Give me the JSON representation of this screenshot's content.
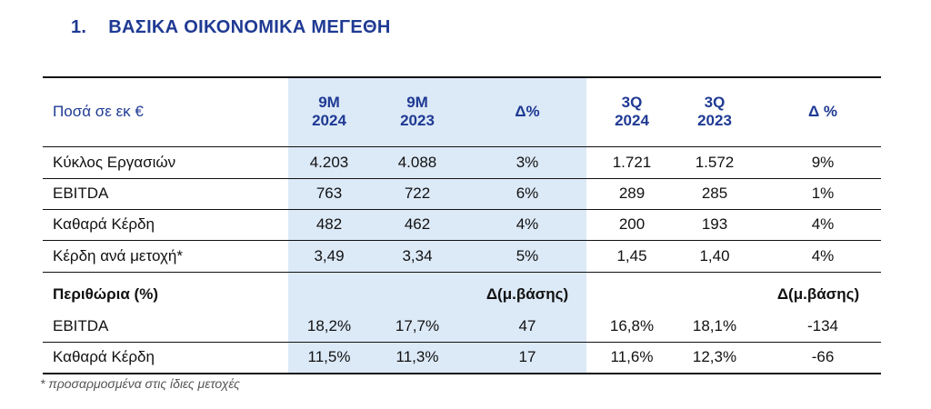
{
  "section": {
    "number": "1.",
    "title": "ΒΑΣΙΚΑ ΟΙΚΟΝΟΜΙΚΑ ΜΕΓΕΘΗ"
  },
  "table": {
    "header": {
      "label": "Ποσά σε εκ €",
      "columns": [
        {
          "line1": "9M",
          "line2": "2024"
        },
        {
          "line1": "9M",
          "line2": "2023"
        },
        {
          "line1": "Δ%",
          "line2": ""
        },
        {
          "line1": "3Q",
          "line2": "2024"
        },
        {
          "line1": "3Q",
          "line2": "2023"
        },
        {
          "line1": "Δ %",
          "line2": ""
        }
      ]
    },
    "rows": [
      {
        "label": "Κύκλος Εργασιών",
        "cells": [
          "4.203",
          "4.088",
          "3%",
          "1.721",
          "1.572",
          "9%"
        ]
      },
      {
        "label": "EBITDA",
        "cells": [
          "763",
          "722",
          "6%",
          "289",
          "285",
          "1%"
        ]
      },
      {
        "label": "Καθαρά Κέρδη",
        "cells": [
          "482",
          "462",
          "4%",
          "200",
          "193",
          "4%"
        ]
      },
      {
        "label": "Κέρδη ανά μετοχή*",
        "cells": [
          "3,49",
          "3,34",
          "5%",
          "1,45",
          "1,40",
          "4%"
        ]
      }
    ],
    "margins_header": {
      "label": "Περιθώρια (%)",
      "delta1": "Δ(μ.βάσης)",
      "delta2": "Δ(μ.βάσης)"
    },
    "margin_rows": [
      {
        "label": "EBITDA",
        "cells": [
          "18,2%",
          "17,7%",
          "47",
          "16,8%",
          "18,1%",
          "-134"
        ]
      },
      {
        "label": "Καθαρά Κέρδη",
        "cells": [
          "11,5%",
          "11,3%",
          "17",
          "11,6%",
          "12,3%",
          "-66"
        ]
      }
    ]
  },
  "footnote": "* προσαρμοσμένα στις ίδιες μετοχές",
  "colors": {
    "heading_blue": "#1f3a93",
    "shade_blue": "#dce9f7",
    "rule": "#111111"
  }
}
